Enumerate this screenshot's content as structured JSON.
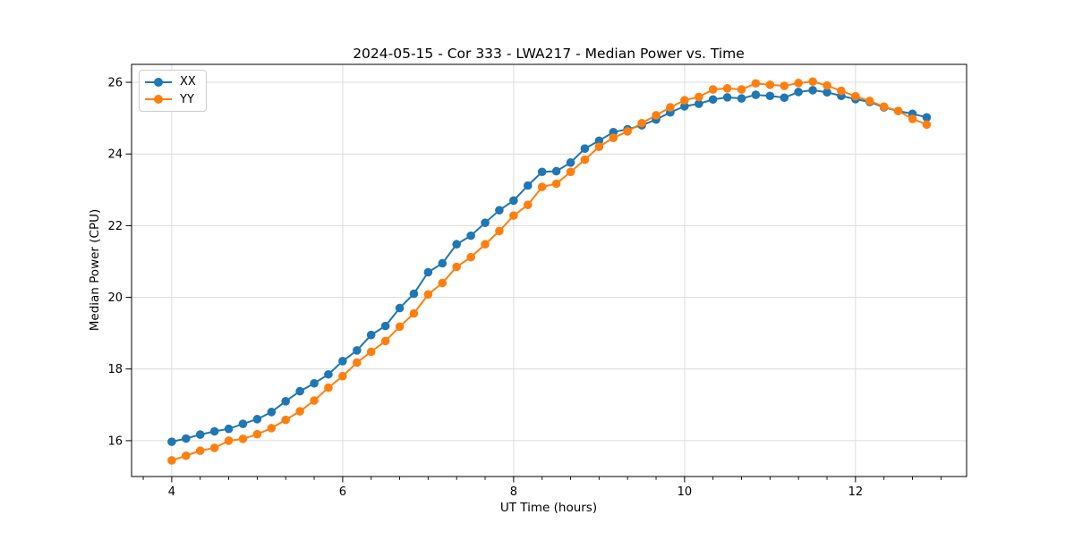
{
  "chart_data": {
    "type": "line",
    "title": "2024-05-15 - Cor 333 - LWA217 - Median Power vs. Time",
    "xlabel": "UT Time (hours)",
    "ylabel": "Median Power (CPU)",
    "xlim": [
      3.53,
      13.3
    ],
    "ylim": [
      15.0,
      26.5
    ],
    "xticks": [
      4,
      6,
      8,
      10,
      12
    ],
    "yticks": [
      16,
      18,
      20,
      22,
      24,
      26
    ],
    "minor_xtick_step": 0.3333,
    "grid": true,
    "grid_color": "#dcdcdc",
    "legend_position": "upper left",
    "x": [
      4.0,
      4.167,
      4.333,
      4.5,
      4.667,
      4.833,
      5.0,
      5.167,
      5.333,
      5.5,
      5.667,
      5.833,
      6.0,
      6.167,
      6.333,
      6.5,
      6.667,
      6.833,
      7.0,
      7.167,
      7.333,
      7.5,
      7.667,
      7.833,
      8.0,
      8.167,
      8.333,
      8.5,
      8.667,
      8.833,
      9.0,
      9.167,
      9.333,
      9.5,
      9.667,
      9.833,
      10.0,
      10.167,
      10.333,
      10.5,
      10.667,
      10.833,
      11.0,
      11.167,
      11.333,
      11.5,
      11.667,
      11.833,
      12.0,
      12.167,
      12.333,
      12.5,
      12.667,
      12.833
    ],
    "series": [
      {
        "name": "XX",
        "color": "#1f77b4",
        "marker": "circle",
        "values": [
          15.97,
          16.06,
          16.17,
          16.26,
          16.33,
          16.47,
          16.6,
          16.8,
          17.1,
          17.38,
          17.6,
          17.85,
          18.22,
          18.52,
          18.95,
          19.2,
          19.7,
          20.1,
          20.7,
          20.95,
          21.48,
          21.72,
          22.08,
          22.43,
          22.7,
          23.12,
          23.5,
          23.52,
          23.76,
          24.15,
          24.37,
          24.61,
          24.69,
          24.8,
          24.96,
          25.16,
          25.33,
          25.4,
          25.52,
          25.58,
          25.55,
          25.65,
          25.62,
          25.57,
          25.73,
          25.78,
          25.72,
          25.62,
          25.53,
          25.45,
          25.3,
          25.2,
          25.12,
          25.02
        ]
      },
      {
        "name": "YY",
        "color": "#ff7f0e",
        "marker": "circle",
        "values": [
          15.45,
          15.58,
          15.72,
          15.8,
          16.0,
          16.05,
          16.18,
          16.35,
          16.58,
          16.82,
          17.12,
          17.48,
          17.8,
          18.18,
          18.48,
          18.78,
          19.18,
          19.55,
          20.08,
          20.4,
          20.85,
          21.12,
          21.48,
          21.85,
          22.28,
          22.58,
          23.08,
          23.17,
          23.5,
          23.84,
          24.2,
          24.45,
          24.63,
          24.86,
          25.08,
          25.3,
          25.5,
          25.59,
          25.8,
          25.83,
          25.8,
          25.97,
          25.93,
          25.9,
          25.98,
          26.02,
          25.91,
          25.76,
          25.61,
          25.48,
          25.32,
          25.2,
          24.98,
          24.82
        ]
      }
    ]
  }
}
